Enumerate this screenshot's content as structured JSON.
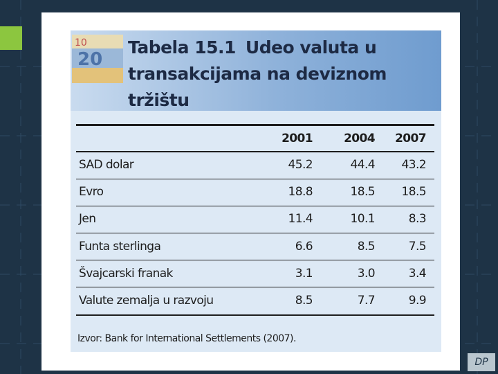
{
  "title": {
    "label": "Tabela 15.1",
    "text": "Udeo valuta u transakcijama na deviznom tržištu"
  },
  "table": {
    "headers": [
      "2001",
      "2004",
      "2007"
    ],
    "rows": [
      [
        "SAD dolar",
        "45.2",
        "44.4",
        "43.2"
      ],
      [
        "Evro",
        "18.8",
        "18.5",
        "18.5"
      ],
      [
        "Jen",
        "11.4",
        "10.1",
        "8.3"
      ],
      [
        "Funta sterlinga",
        "6.6",
        "8.5",
        "7.5"
      ],
      [
        "Švajcarski franak",
        "3.1",
        "3.0",
        "3.4"
      ],
      [
        "Valute zemalja u razvoju",
        "8.5",
        "7.7",
        "9.9"
      ]
    ],
    "source": "Izvor: Bank for International Settlements (2007)."
  },
  "logo": "DP"
}
